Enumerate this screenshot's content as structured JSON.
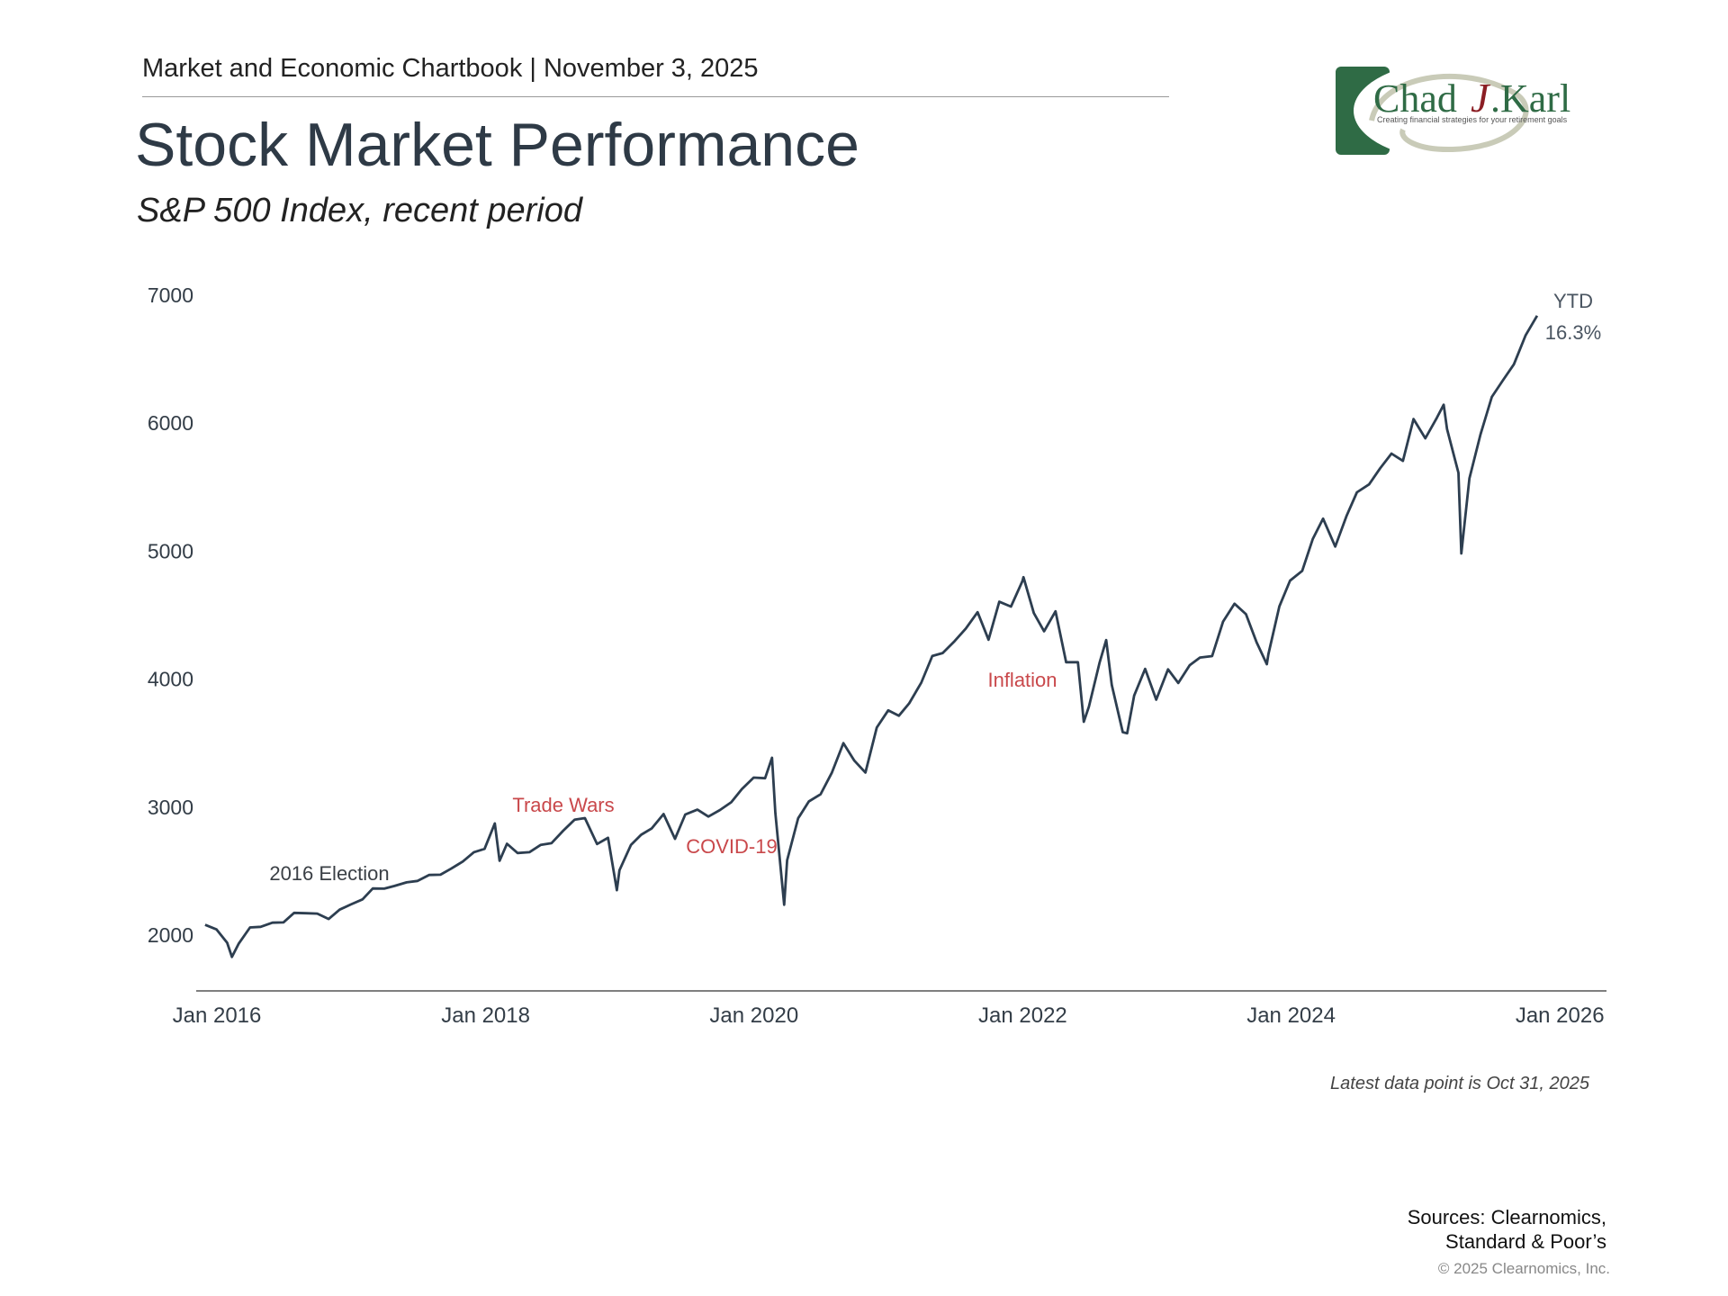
{
  "header": {
    "chartbook": "Market and Economic Chartbook | November 3, 2025",
    "title": "Stock Market Performance",
    "subtitle": "S&P 500 Index, recent period"
  },
  "logo": {
    "name": "Chad J. Karl",
    "tagline": "Creating financial strategies for your retirement goals",
    "colors": {
      "green": "#2f6b45",
      "red": "#8b1e24",
      "swoosh": "#c9cbb8"
    }
  },
  "chart_data": {
    "type": "line",
    "title": "",
    "xlabel": "",
    "ylabel": "",
    "ylim": [
      1500,
      7000
    ],
    "yticks": [
      "2000",
      "3000",
      "4000",
      "5000",
      "6000",
      "7000"
    ],
    "xticks": [
      "Jan 2016",
      "Jan 2018",
      "Jan 2020",
      "Jan 2022",
      "Jan 2024",
      "Jan 2026"
    ],
    "grid": false,
    "line_color": "#2d3e50",
    "annotation_color": "#c9484b",
    "series": [
      {
        "x": [
          "2015-11-30",
          "2015-12-31",
          "2016-01-29",
          "2016-02-11",
          "2016-02-29",
          "2016-03-31",
          "2016-04-29",
          "2016-05-31",
          "2016-06-30",
          "2016-07-29",
          "2016-08-31",
          "2016-09-30",
          "2016-10-31",
          "2016-11-30",
          "2016-12-30",
          "2017-01-31",
          "2017-02-28",
          "2017-03-31",
          "2017-04-28",
          "2017-05-31",
          "2017-06-30",
          "2017-07-31",
          "2017-08-31",
          "2017-09-29",
          "2017-10-31",
          "2017-11-30",
          "2017-12-29",
          "2018-01-26",
          "2018-02-08",
          "2018-02-28",
          "2018-03-29",
          "2018-04-30",
          "2018-05-31",
          "2018-06-29",
          "2018-07-31",
          "2018-08-31",
          "2018-09-28",
          "2018-10-31",
          "2018-11-30",
          "2018-12-24",
          "2018-12-31",
          "2019-01-31",
          "2019-02-28",
          "2019-03-29",
          "2019-04-30",
          "2019-05-31",
          "2019-06-28",
          "2019-07-31",
          "2019-08-30",
          "2019-09-30",
          "2019-10-31",
          "2019-11-29",
          "2019-12-31",
          "2020-01-31",
          "2020-02-19",
          "2020-02-28",
          "2020-03-23",
          "2020-03-31",
          "2020-04-30",
          "2020-05-29",
          "2020-06-30",
          "2020-07-31",
          "2020-08-31",
          "2020-09-30",
          "2020-10-30",
          "2020-11-30",
          "2020-12-31",
          "2021-01-29",
          "2021-02-26",
          "2021-03-31",
          "2021-04-30",
          "2021-05-28",
          "2021-06-30",
          "2021-07-30",
          "2021-08-31",
          "2021-09-30",
          "2021-10-29",
          "2021-11-30",
          "2021-12-31",
          "2022-01-03",
          "2022-01-31",
          "2022-02-28",
          "2022-03-31",
          "2022-04-29",
          "2022-05-31",
          "2022-06-16",
          "2022-06-30",
          "2022-07-29",
          "2022-08-16",
          "2022-08-31",
          "2022-09-30",
          "2022-10-12",
          "2022-10-31",
          "2022-11-30",
          "2022-12-30",
          "2023-01-31",
          "2023-02-28",
          "2023-03-31",
          "2023-04-28",
          "2023-05-31",
          "2023-06-30",
          "2023-07-31",
          "2023-08-31",
          "2023-09-29",
          "2023-10-27",
          "2023-10-31",
          "2023-11-30",
          "2023-12-29",
          "2024-01-31",
          "2024-02-29",
          "2024-03-28",
          "2024-04-30",
          "2024-05-31",
          "2024-06-28",
          "2024-07-31",
          "2024-08-30",
          "2024-09-30",
          "2024-10-31",
          "2024-11-29",
          "2024-12-31",
          "2025-01-31",
          "2025-02-19",
          "2025-02-28",
          "2025-03-31",
          "2025-04-08",
          "2025-04-30",
          "2025-05-30",
          "2025-06-30",
          "2025-07-31",
          "2025-08-29",
          "2025-09-30",
          "2025-10-31"
        ],
        "y": [
          2080,
          2044,
          1940,
          1829,
          1932,
          2060,
          2065,
          2097,
          2099,
          2174,
          2171,
          2168,
          2126,
          2199,
          2239,
          2279,
          2364,
          2363,
          2384,
          2412,
          2423,
          2470,
          2472,
          2519,
          2575,
          2648,
          2674,
          2873,
          2581,
          2714,
          2641,
          2648,
          2705,
          2718,
          2816,
          2902,
          2914,
          2712,
          2760,
          2351,
          2507,
          2704,
          2784,
          2834,
          2946,
          2752,
          2942,
          2980,
          2926,
          2977,
          3038,
          3141,
          3231,
          3226,
          3386,
          2954,
          2237,
          2585,
          2912,
          3044,
          3100,
          3271,
          3500,
          3363,
          3270,
          3622,
          3756,
          3714,
          3811,
          3973,
          4181,
          4204,
          4298,
          4395,
          4523,
          4308,
          4605,
          4567,
          4766,
          4797,
          4516,
          4374,
          4530,
          4132,
          4132,
          3667,
          3785,
          4130,
          4305,
          3955,
          3586,
          3577,
          3872,
          4080,
          3840,
          4077,
          3970,
          4109,
          4169,
          4180,
          4450,
          4589,
          4508,
          4288,
          4117,
          4194,
          4568,
          4770,
          4846,
          5096,
          5254,
          5036,
          5278,
          5460,
          5522,
          5648,
          5762,
          5705,
          6032,
          5882,
          6041,
          6144,
          5955,
          5612,
          4982,
          5569,
          5912,
          6205,
          6339,
          6460,
          6688,
          6840
        ]
      }
    ],
    "annotations": [
      {
        "text": "2016 Election",
        "date": "2016-11-08",
        "color": "#3a3f45"
      },
      {
        "text": "Trade Wars",
        "date": "2018-07-01",
        "color": "#c9484b"
      },
      {
        "text": "COVID-19",
        "date": "2020-03-01",
        "color": "#c9484b"
      },
      {
        "text": "Inflation",
        "date": "2022-03-01",
        "color": "#c9484b"
      }
    ],
    "end_label": {
      "line1": "YTD",
      "line2": "16.3%"
    }
  },
  "footer": {
    "note": "Latest data point is Oct 31, 2025",
    "sources_line1": "Sources: Clearnomics,",
    "sources_line2": "Standard & Poor’s",
    "copyright": "© 2025 Clearnomics, Inc."
  }
}
